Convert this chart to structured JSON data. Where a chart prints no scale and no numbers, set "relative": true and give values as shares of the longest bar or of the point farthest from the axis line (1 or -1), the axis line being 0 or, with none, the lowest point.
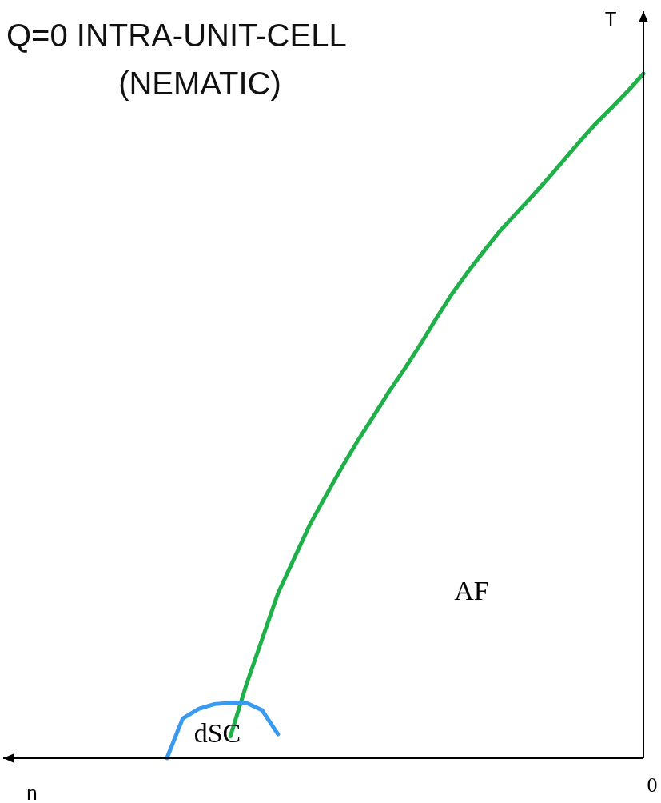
{
  "chart_data": {
    "type": "line",
    "title": "Q=0 INTRA-UNIT-CELL\n(NEMATIC)",
    "xlabel": "n",
    "ylabel": "T",
    "relative": true,
    "categories": [
      null,
      null,
      null,
      null,
      null,
      null,
      null,
      null,
      null,
      null,
      null,
      null,
      null,
      null,
      null,
      null,
      null,
      null,
      null,
      null,
      null,
      null,
      null,
      null,
      null,
      null,
      null,
      null,
      null,
      null,
      null,
      null,
      null,
      null,
      null,
      null,
      null,
      null,
      null,
      null,
      null
    ],
    "series": [
      {
        "color": "#1fb04a",
        "values": [
          null,
          null,
          null,
          null,
          null,
          null,
          null,
          null,
          null,
          null,
          null,
          null,
          null,
          null,
          0.032,
          0.107,
          0.174,
          0.241,
          0.291,
          0.341,
          0.383,
          0.424,
          0.463,
          0.499,
          0.536,
          0.57,
          0.606,
          0.644,
          0.68,
          0.712,
          0.742,
          0.771,
          0.796,
          0.821,
          0.847,
          0.874,
          0.901,
          0.927,
          0.95,
          0.974,
          1
        ]
      },
      {
        "color": "#3a9af0",
        "values": [
          null,
          null,
          null,
          null,
          null,
          null,
          null,
          null,
          null,
          null,
          0,
          0.058,
          0.072,
          0.079,
          0.081,
          0.081,
          0.07,
          0.035,
          null,
          null,
          null,
          null,
          null,
          null,
          null,
          null,
          null,
          null,
          null,
          null,
          null,
          null,
          null,
          null,
          null,
          null,
          null,
          null,
          null,
          null,
          null
        ]
      }
    ],
    "annotations": [
      "AF",
      "dSC",
      "0"
    ]
  }
}
